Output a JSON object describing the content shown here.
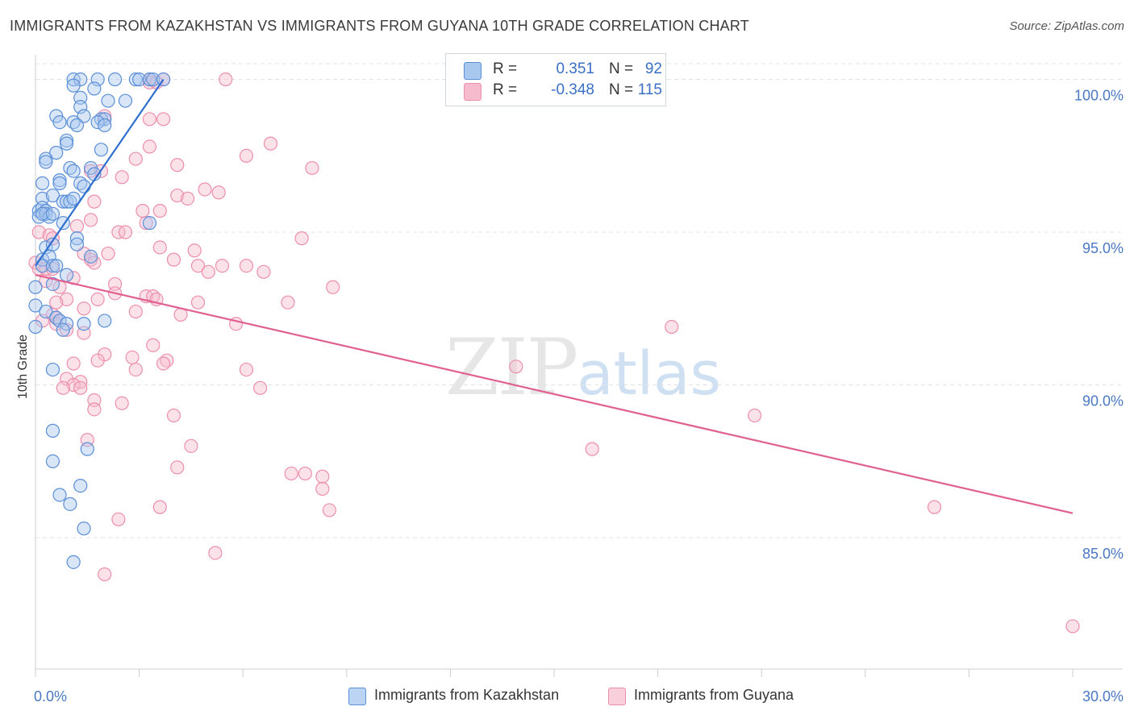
{
  "title": "IMMIGRANTS FROM KAZAKHSTAN VS IMMIGRANTS FROM GUYANA 10TH GRADE CORRELATION CHART",
  "source": "Source: ZipAtlas.com",
  "watermark": {
    "zip": "ZIP",
    "atlas": "atlas"
  },
  "legend_top": {
    "r_label": "R =",
    "n_label": "N =",
    "series": [
      {
        "r": "0.351",
        "n": "92"
      },
      {
        "r": "-0.348",
        "n": "115"
      }
    ]
  },
  "colors": {
    "blue_fill": "#a9c8ef",
    "blue_stroke": "#5b8fd6",
    "blue_line": "#2f6fcf",
    "pink_fill": "#f6bccd",
    "pink_stroke": "#ec8fae",
    "pink_line": "#e0608f",
    "axis_text": "#4a78c2",
    "grid": "#e3e3e3"
  },
  "chart_data": {
    "type": "scatter",
    "title": "IMMIGRANTS FROM KAZAKHSTAN VS IMMIGRANTS FROM GUYANA 10TH GRADE CORRELATION CHART",
    "xlabel": "",
    "ylabel": "10th Grade",
    "xlim": [
      0,
      30
    ],
    "ylim": [
      80.7,
      100.7
    ],
    "x_tick_labels": [
      "0.0%",
      "30.0%"
    ],
    "y_ticks": [
      85,
      90,
      95,
      100
    ],
    "y_tick_labels": [
      "85.0%",
      "90.0%",
      "95.0%",
      "100.0%"
    ],
    "legend": [
      "Immigrants from Kazakhstan",
      "Immigrants from Guyana"
    ],
    "series": [
      {
        "name": "Immigrants from Kazakhstan",
        "color": "blue",
        "trend": {
          "x": [
            0.0,
            3.7
          ],
          "y": [
            93.9,
            100.0
          ]
        },
        "points": [
          [
            1.1,
            100
          ],
          [
            1.3,
            100
          ],
          [
            1.8,
            100
          ],
          [
            2.3,
            100
          ],
          [
            2.9,
            100
          ],
          [
            3.0,
            100
          ],
          [
            3.3,
            100
          ],
          [
            3.4,
            100
          ],
          [
            3.7,
            100
          ],
          [
            1.1,
            99.8
          ],
          [
            1.7,
            99.7
          ],
          [
            1.3,
            99.4
          ],
          [
            2.1,
            99.3
          ],
          [
            2.6,
            99.3
          ],
          [
            1.3,
            99.1
          ],
          [
            0.6,
            98.8
          ],
          [
            1.4,
            98.8
          ],
          [
            1.9,
            98.7
          ],
          [
            2.0,
            98.7
          ],
          [
            0.7,
            98.6
          ],
          [
            1.1,
            98.6
          ],
          [
            1.8,
            98.6
          ],
          [
            1.2,
            98.5
          ],
          [
            2.0,
            98.5
          ],
          [
            0.9,
            98.0
          ],
          [
            0.9,
            97.9
          ],
          [
            1.9,
            97.7
          ],
          [
            0.6,
            97.6
          ],
          [
            0.3,
            97.4
          ],
          [
            0.3,
            97.3
          ],
          [
            1.0,
            97.1
          ],
          [
            1.1,
            97.0
          ],
          [
            1.6,
            97.1
          ],
          [
            1.7,
            96.9
          ],
          [
            0.2,
            96.6
          ],
          [
            0.7,
            96.7
          ],
          [
            0.7,
            96.6
          ],
          [
            1.3,
            96.6
          ],
          [
            1.4,
            96.5
          ],
          [
            0.2,
            96.1
          ],
          [
            0.5,
            96.2
          ],
          [
            0.8,
            96.0
          ],
          [
            0.9,
            96.0
          ],
          [
            1.0,
            96.0
          ],
          [
            1.1,
            96.1
          ],
          [
            0.1,
            95.7
          ],
          [
            0.2,
            95.8
          ],
          [
            0.3,
            95.7
          ],
          [
            0.1,
            95.5
          ],
          [
            0.3,
            95.6
          ],
          [
            0.4,
            95.5
          ],
          [
            0.2,
            95.6
          ],
          [
            0.5,
            95.6
          ],
          [
            0.8,
            95.3
          ],
          [
            3.3,
            95.3
          ],
          [
            1.2,
            94.8
          ],
          [
            0.3,
            94.5
          ],
          [
            0.5,
            94.6
          ],
          [
            1.2,
            94.6
          ],
          [
            0.2,
            94.1
          ],
          [
            0.4,
            94.2
          ],
          [
            1.6,
            94.2
          ],
          [
            0.2,
            93.9
          ],
          [
            0.5,
            93.9
          ],
          [
            0.6,
            93.9
          ],
          [
            0.9,
            93.6
          ],
          [
            0.0,
            93.2
          ],
          [
            0.5,
            93.3
          ],
          [
            0.0,
            92.6
          ],
          [
            0.3,
            92.4
          ],
          [
            0.6,
            92.2
          ],
          [
            0.7,
            92.1
          ],
          [
            0.9,
            92.0
          ],
          [
            2.0,
            92.1
          ],
          [
            0.0,
            91.9
          ],
          [
            0.8,
            91.8
          ],
          [
            1.4,
            92.0
          ],
          [
            0.5,
            90.5
          ],
          [
            0.5,
            88.5
          ],
          [
            1.5,
            87.9
          ],
          [
            0.5,
            87.5
          ],
          [
            1.3,
            86.7
          ],
          [
            0.7,
            86.4
          ],
          [
            1.0,
            86.1
          ],
          [
            1.4,
            85.3
          ],
          [
            1.1,
            84.2
          ]
        ]
      },
      {
        "name": "Immigrants from Guyana",
        "color": "pink",
        "trend": {
          "x": [
            0.0,
            30.0
          ],
          "y": [
            93.6,
            85.8
          ]
        },
        "points": [
          [
            3.7,
            100
          ],
          [
            5.5,
            100
          ],
          [
            3.3,
            100
          ],
          [
            3.3,
            99.9
          ],
          [
            3.5,
            99.9
          ],
          [
            2.0,
            98.8
          ],
          [
            3.3,
            98.7
          ],
          [
            3.7,
            98.7
          ],
          [
            6.8,
            97.9
          ],
          [
            3.3,
            97.8
          ],
          [
            6.1,
            97.5
          ],
          [
            2.9,
            97.4
          ],
          [
            4.1,
            97.2
          ],
          [
            8.0,
            97.1
          ],
          [
            1.6,
            97.0
          ],
          [
            1.9,
            97.0
          ],
          [
            2.5,
            96.8
          ],
          [
            4.9,
            96.4
          ],
          [
            5.3,
            96.3
          ],
          [
            4.1,
            96.2
          ],
          [
            4.4,
            96.1
          ],
          [
            1.7,
            96.0
          ],
          [
            3.1,
            95.7
          ],
          [
            3.6,
            95.7
          ],
          [
            1.6,
            95.4
          ],
          [
            3.2,
            95.3
          ],
          [
            1.2,
            95.2
          ],
          [
            2.4,
            95.0
          ],
          [
            2.6,
            95.0
          ],
          [
            0.1,
            95.0
          ],
          [
            0.4,
            94.9
          ],
          [
            0.5,
            94.8
          ],
          [
            7.7,
            94.8
          ],
          [
            3.6,
            94.5
          ],
          [
            4.6,
            94.4
          ],
          [
            1.4,
            94.3
          ],
          [
            2.1,
            94.3
          ],
          [
            1.6,
            94.1
          ],
          [
            4.0,
            94.1
          ],
          [
            0.0,
            94.0
          ],
          [
            1.7,
            94.0
          ],
          [
            4.7,
            93.9
          ],
          [
            5.4,
            93.9
          ],
          [
            6.1,
            93.9
          ],
          [
            0.1,
            93.8
          ],
          [
            0.3,
            93.8
          ],
          [
            0.5,
            93.8
          ],
          [
            5.0,
            93.7
          ],
          [
            6.6,
            93.7
          ],
          [
            1.1,
            93.5
          ],
          [
            0.3,
            93.4
          ],
          [
            2.3,
            93.3
          ],
          [
            0.7,
            93.2
          ],
          [
            8.6,
            93.2
          ],
          [
            2.3,
            93.0
          ],
          [
            3.2,
            92.9
          ],
          [
            3.4,
            92.9
          ],
          [
            0.9,
            92.8
          ],
          [
            3.5,
            92.8
          ],
          [
            1.8,
            92.8
          ],
          [
            0.6,
            92.7
          ],
          [
            4.7,
            92.7
          ],
          [
            7.3,
            92.7
          ],
          [
            1.4,
            92.5
          ],
          [
            2.9,
            92.4
          ],
          [
            4.2,
            92.3
          ],
          [
            0.5,
            92.3
          ],
          [
            0.6,
            92.2
          ],
          [
            0.2,
            92.1
          ],
          [
            5.8,
            92.0
          ],
          [
            0.6,
            92.0
          ],
          [
            18.4,
            91.9
          ],
          [
            1.4,
            91.7
          ],
          [
            0.9,
            91.8
          ],
          [
            3.4,
            91.3
          ],
          [
            2.0,
            91.0
          ],
          [
            2.8,
            90.9
          ],
          [
            3.8,
            90.8
          ],
          [
            1.8,
            90.8
          ],
          [
            3.7,
            90.7
          ],
          [
            1.1,
            90.7
          ],
          [
            2.9,
            90.5
          ],
          [
            13.9,
            90.6
          ],
          [
            6.1,
            90.5
          ],
          [
            0.9,
            90.2
          ],
          [
            1.3,
            90.1
          ],
          [
            1.1,
            90.0
          ],
          [
            0.8,
            89.9
          ],
          [
            6.5,
            89.9
          ],
          [
            1.3,
            89.9
          ],
          [
            1.7,
            89.5
          ],
          [
            2.5,
            89.4
          ],
          [
            1.7,
            89.2
          ],
          [
            4.0,
            89.0
          ],
          [
            20.8,
            89.0
          ],
          [
            1.5,
            88.2
          ],
          [
            4.5,
            88.0
          ],
          [
            16.1,
            87.9
          ],
          [
            4.1,
            87.3
          ],
          [
            7.4,
            87.1
          ],
          [
            7.8,
            87.1
          ],
          [
            8.3,
            87.0
          ],
          [
            8.3,
            86.6
          ],
          [
            8.5,
            85.9
          ],
          [
            26.0,
            86.0
          ],
          [
            3.6,
            86.0
          ],
          [
            2.4,
            85.6
          ],
          [
            5.2,
            84.5
          ],
          [
            2.0,
            83.8
          ],
          [
            30.0,
            82.1
          ]
        ]
      }
    ]
  }
}
